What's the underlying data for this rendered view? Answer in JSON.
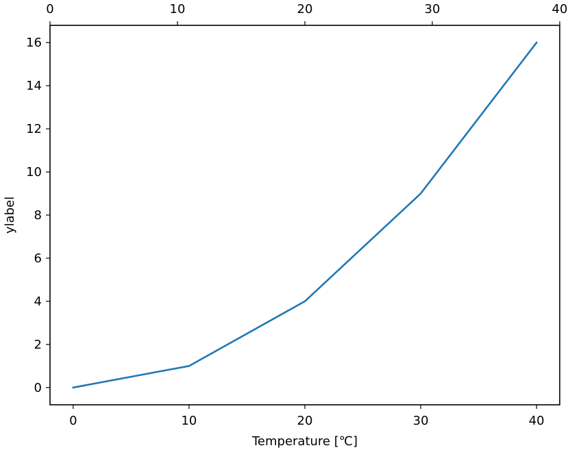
{
  "chart_data": {
    "type": "line",
    "xlabel": "Temperature [℃]",
    "ylabel": "ylabel",
    "x": [
      0,
      10,
      20,
      30,
      40
    ],
    "series": [
      {
        "values": [
          0,
          1,
          4,
          9,
          16
        ],
        "color": "#1f77b4"
      }
    ],
    "xlim": [
      -2,
      42
    ],
    "ylim": [
      -0.8,
      16.8
    ],
    "x_ticks": [
      0,
      10,
      20,
      30,
      40
    ],
    "y_ticks": [
      0,
      2,
      4,
      6,
      8,
      10,
      12,
      14,
      16
    ],
    "top_axis": {
      "xlim": [
        0,
        40
      ],
      "ticks": [
        0,
        10,
        20,
        30,
        40
      ]
    },
    "grid": false
  }
}
